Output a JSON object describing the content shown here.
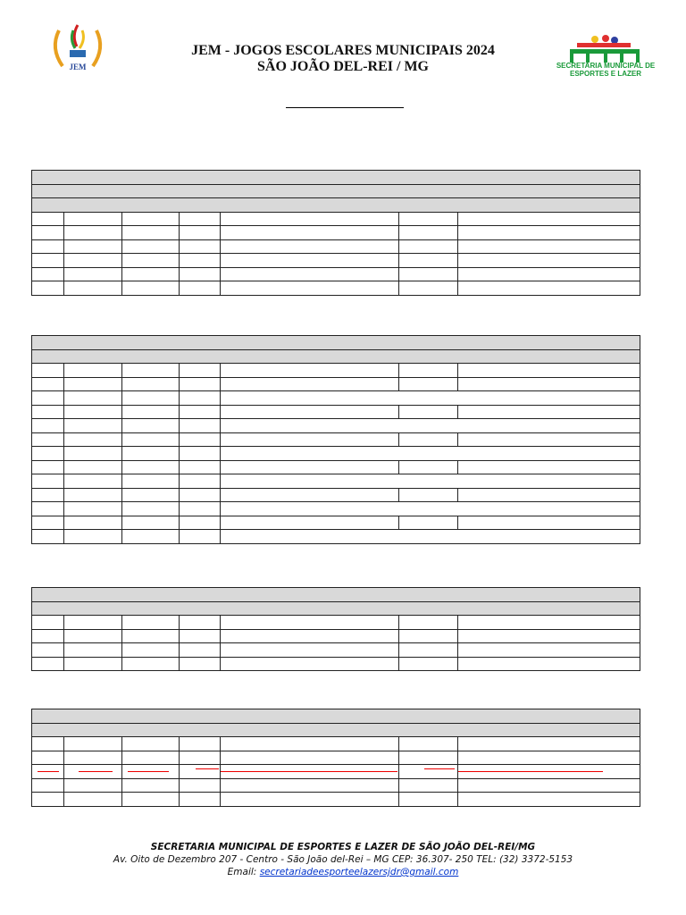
{
  "header": {
    "title_line1": "JEM - JOGOS ESCOLARES MUNICIPAIS 2024",
    "title_line2": "SÃO JOÃO DEL-REI / MG",
    "logo_left_text": "JEM",
    "logo_right_text": "SECRETARIA MUNICIPAL DE ESPORTES E LAZER"
  },
  "colors": {
    "gray_header": "#d9d9d9",
    "red_mark": "#ee0000",
    "link": "#0033cc",
    "logo_green": "#1a9a3a"
  },
  "footer": {
    "line1": "SECRETARIA MUNICIPAL DE ESPORTES E LAZER DE SÃO JOÃO DEL-REI/MG",
    "line2": "Av. Oito de Dezembro 207 - Centro - São João del-Rei – MG CEP: 36.307- 250 TEL: (32) 3372-5153",
    "email_label": "Email: ",
    "email": "secretariadeesporteelazersjdr@gmail.com"
  }
}
